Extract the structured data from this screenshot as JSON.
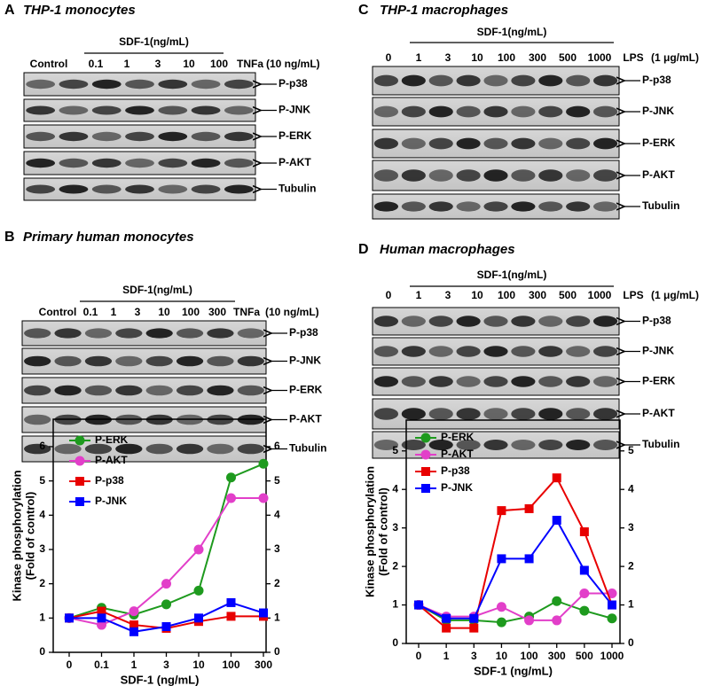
{
  "panels": [
    {
      "letter": "A",
      "title": "THP-1 monocytes",
      "treatment": "SDF-1(ng/mL)",
      "lanes": [
        "Control",
        "0.1",
        "1",
        "3",
        "10",
        "100",
        "TNFa"
      ],
      "lane_note": "(10 ng/mL)",
      "blots": [
        "P-p38",
        "P-JNK",
        "P-ERK",
        "P-AKT",
        "Tubulin"
      ]
    },
    {
      "letter": "B",
      "title": "Primary human monocytes",
      "treatment": "SDF-1(ng/mL)",
      "lanes": [
        "Control",
        "0.1",
        "1",
        "3",
        "10",
        "100",
        "300",
        "TNFa"
      ],
      "lane_note": "(10 ng/mL)",
      "blots": [
        "P-p38",
        "P-JNK",
        "P-ERK",
        "P-AKT",
        "Tubulin"
      ]
    },
    {
      "letter": "C",
      "title": "THP-1 macrophages",
      "treatment": "SDF-1(ng/mL)",
      "lanes": [
        "0",
        "1",
        "3",
        "10",
        "100",
        "300",
        "500",
        "1000",
        "LPS"
      ],
      "lane_note": "(1 μg/mL)",
      "blots": [
        "P-p38",
        "P-JNK",
        "P-ERK",
        "P-AKT",
        "Tubulin"
      ]
    },
    {
      "letter": "D",
      "title": "Human macrophages",
      "treatment": "SDF-1(ng/mL)",
      "lanes": [
        "0",
        "1",
        "3",
        "10",
        "100",
        "300",
        "500",
        "1000",
        "LPS"
      ],
      "lane_note": "(1 μg/mL)",
      "blots": [
        "P-p38",
        "P-JNK",
        "P-ERK",
        "P-AKT",
        "Tubulin"
      ]
    }
  ],
  "chart_data": [
    {
      "type": "line",
      "ylabel": [
        "Kinase phosphorylation",
        "(Fold of control)"
      ],
      "xlabel": "SDF-1 (ng/mL)",
      "categories": [
        "0",
        "0.1",
        "1",
        "3",
        "10",
        "100",
        "300"
      ],
      "series": [
        {
          "name": "P-ERK",
          "color": "#1e9a1e",
          "marker": "circle",
          "values": [
            1,
            1.3,
            1.1,
            1.4,
            1.8,
            5.1,
            5.5
          ]
        },
        {
          "name": "P-AKT",
          "color": "#e23fc9",
          "marker": "circle",
          "values": [
            1,
            0.8,
            1.2,
            2.0,
            3.0,
            4.5,
            4.5
          ]
        },
        {
          "name": "P-p38",
          "color": "#e80000",
          "marker": "square",
          "values": [
            1,
            1.2,
            0.8,
            0.7,
            0.9,
            1.05,
            1.05
          ]
        },
        {
          "name": "P-JNK",
          "color": "#0000ff",
          "marker": "square",
          "values": [
            1,
            1.0,
            0.6,
            0.75,
            1.0,
            1.45,
            1.15
          ]
        }
      ],
      "ylim": [
        0,
        6.8
      ],
      "yticks": [
        0,
        1,
        2,
        3,
        4,
        5,
        6
      ],
      "y2lim": [
        0,
        6.8
      ],
      "y2ticks": [
        0,
        1,
        2,
        3,
        4,
        5,
        6
      ],
      "legend": "upper left"
    },
    {
      "type": "line",
      "ylabel": [
        "Kinase phosphorylation",
        "(Fold of control)"
      ],
      "xlabel": "SDF-1 (ng/mL)",
      "categories": [
        "0",
        "1",
        "3",
        "10",
        "100",
        "300",
        "500",
        "1000"
      ],
      "series": [
        {
          "name": "P-ERK",
          "color": "#1e9a1e",
          "marker": "circle",
          "values": [
            1,
            0.6,
            0.6,
            0.55,
            0.7,
            1.1,
            0.85,
            0.65
          ]
        },
        {
          "name": "P-AKT",
          "color": "#e23fc9",
          "marker": "circle",
          "values": [
            1,
            0.7,
            0.7,
            0.95,
            0.6,
            0.6,
            1.3,
            1.3
          ]
        },
        {
          "name": "P-p38",
          "color": "#e80000",
          "marker": "square",
          "values": [
            1,
            0.4,
            0.4,
            3.45,
            3.5,
            4.3,
            2.9,
            1.0
          ]
        },
        {
          "name": "P-JNK",
          "color": "#0000ff",
          "marker": "square",
          "values": [
            1,
            0.65,
            0.65,
            2.2,
            2.2,
            3.2,
            1.9,
            1.0
          ]
        }
      ],
      "ylim": [
        0,
        5.8
      ],
      "yticks": [
        0,
        1,
        2,
        3,
        4,
        5
      ],
      "y2lim": [
        0,
        5.8
      ],
      "y2ticks": [
        0,
        1,
        2,
        3,
        4,
        5
      ],
      "legend": "upper left"
    }
  ]
}
